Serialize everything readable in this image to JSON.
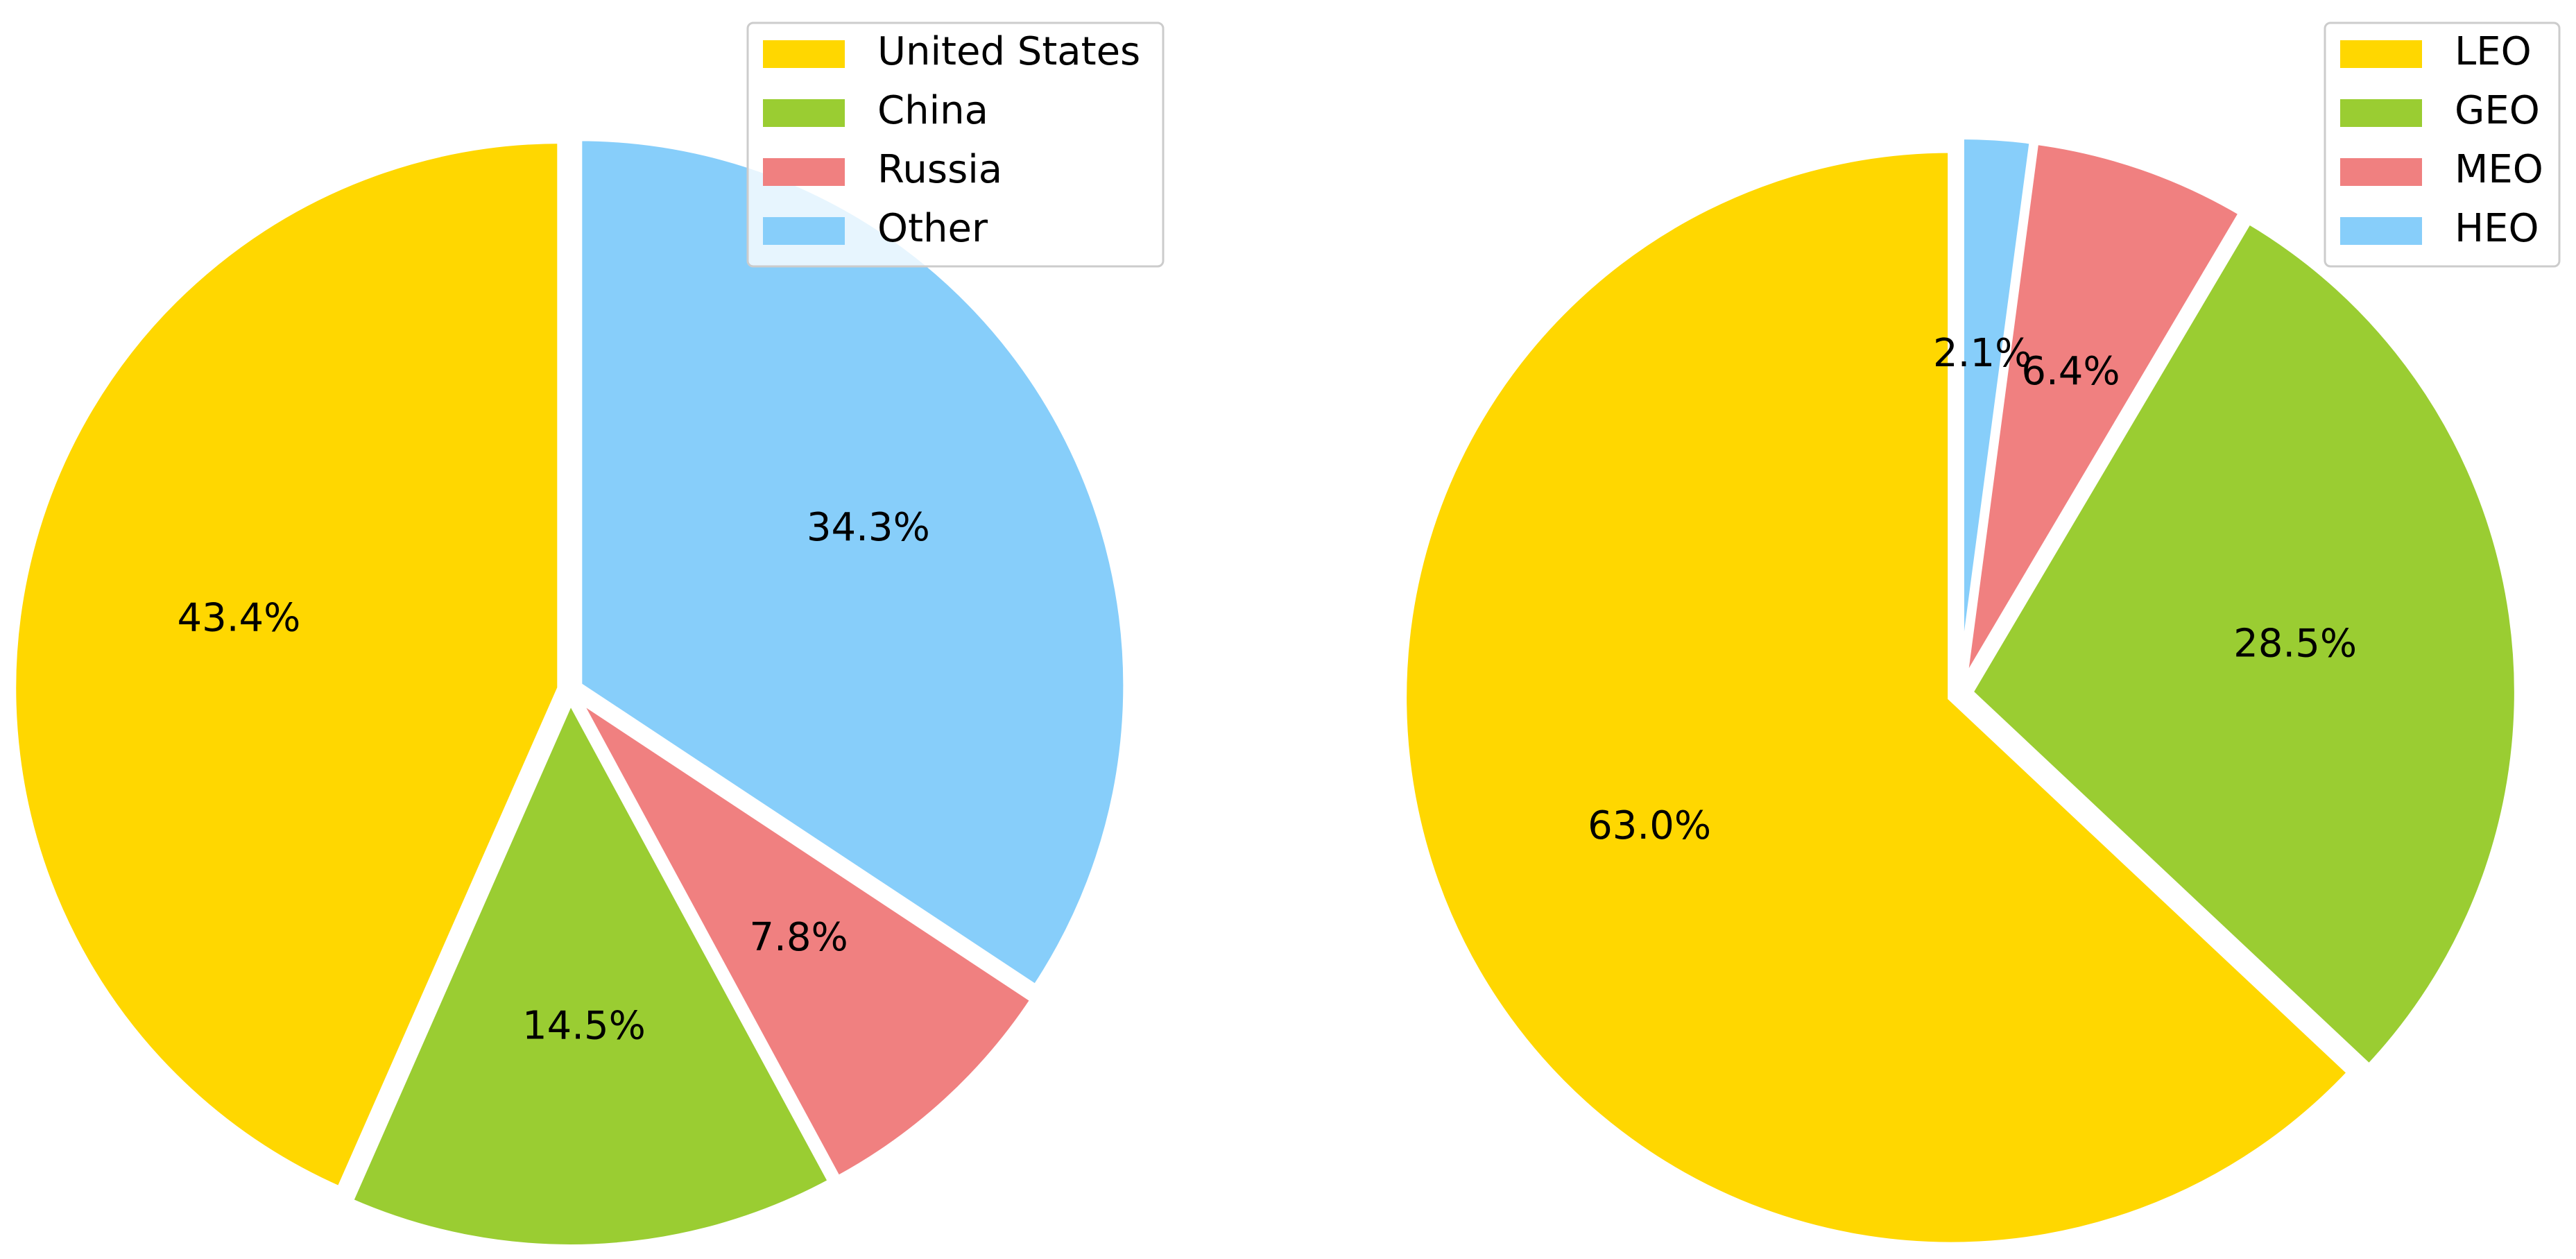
{
  "chart_data": [
    {
      "type": "pie",
      "categories": [
        "United States",
        "China",
        "Russia",
        "Other"
      ],
      "values": [
        43.4,
        14.5,
        7.8,
        34.3
      ],
      "value_labels": [
        "43.4%",
        "14.5%",
        "7.8%",
        "34.3%"
      ],
      "colors": [
        "#ffd700",
        "#9acd32",
        "#f08080",
        "#87cefa"
      ],
      "legend": "upper right"
    },
    {
      "type": "pie",
      "categories": [
        "LEO",
        "GEO",
        "MEO",
        "HEO"
      ],
      "values": [
        63.0,
        28.5,
        6.4,
        2.1
      ],
      "value_labels": [
        "63.0%",
        "28.5%",
        "6.4%",
        "2.1%"
      ],
      "colors": [
        "#ffd700",
        "#9acd32",
        "#f08080",
        "#87cefa"
      ],
      "legend": "upper right"
    }
  ]
}
